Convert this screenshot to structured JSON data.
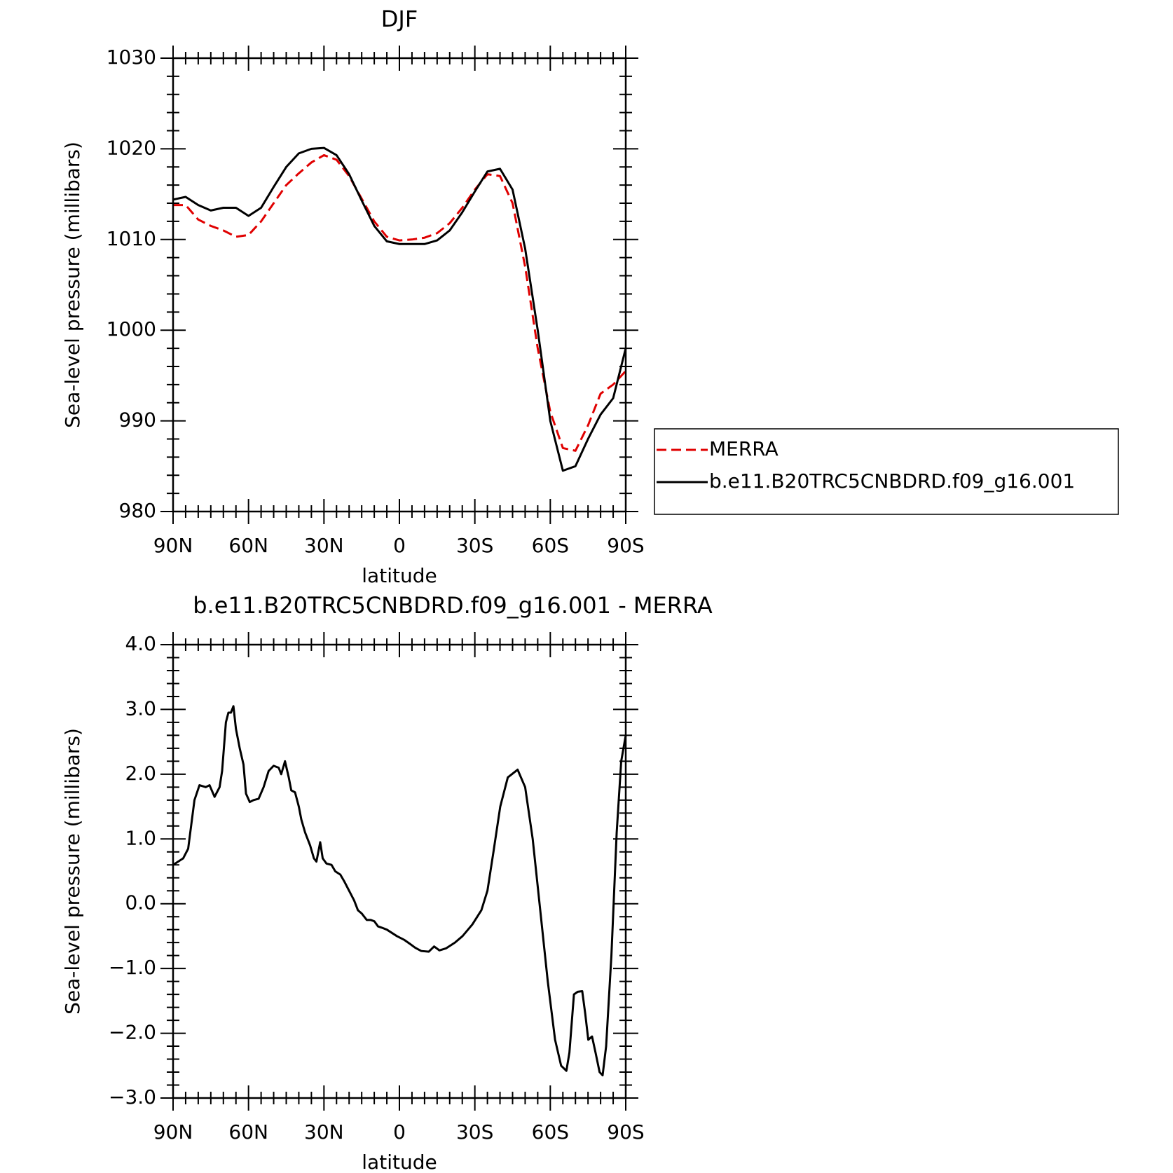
{
  "chart_data": [
    {
      "type": "line",
      "title": "DJF",
      "xlabel": "latitude",
      "ylabel": "Sea-level pressure (millibars)",
      "x": [
        90,
        85,
        80,
        75,
        70,
        65,
        60,
        55,
        50,
        45,
        40,
        35,
        30,
        25,
        20,
        15,
        10,
        5,
        0,
        -5,
        -10,
        -15,
        -20,
        -25,
        -30,
        -35,
        -40,
        -45,
        -50,
        -55,
        -60,
        -65,
        -70,
        -75,
        -80,
        -85,
        -90
      ],
      "series": [
        {
          "name": "MERRA",
          "color": "#e00000",
          "dash": true,
          "values": [
            1013.8,
            1013.8,
            1012.2,
            1011.5,
            1011,
            1010.3,
            1010.5,
            1012,
            1014,
            1016,
            1017.3,
            1018.5,
            1019.3,
            1018.8,
            1017,
            1014.5,
            1012,
            1010.3,
            1009.9,
            1010,
            1010.2,
            1010.7,
            1011.8,
            1013.5,
            1015.5,
            1017.2,
            1017,
            1014,
            1007,
            998,
            991,
            987,
            986.7,
            989.5,
            993,
            994,
            995.5
          ]
        },
        {
          "name": "b.e11.B20TRC5CNBDRD.f09_g16.001",
          "color": "#000000",
          "dash": false,
          "values": [
            1014.4,
            1014.7,
            1013.8,
            1013.2,
            1013.5,
            1013.5,
            1012.6,
            1013.5,
            1015.8,
            1018,
            1019.5,
            1020,
            1020.1,
            1019.3,
            1017.2,
            1014.3,
            1011.5,
            1009.8,
            1009.5,
            1009.5,
            1009.5,
            1009.9,
            1011,
            1013,
            1015.3,
            1017.5,
            1017.8,
            1015.5,
            1009,
            1000,
            990,
            984.5,
            985,
            988,
            990.7,
            992.5,
            998
          ]
        }
      ],
      "xlim": [
        90,
        -90
      ],
      "xticks": [
        {
          "value": 90,
          "label": "90N"
        },
        {
          "value": 60,
          "label": "60N"
        },
        {
          "value": 30,
          "label": "30N"
        },
        0,
        {
          "value": -30,
          "label": "30S"
        },
        {
          "value": -60,
          "label": "60S"
        },
        {
          "value": -90,
          "label": "90S"
        }
      ],
      "ylim": [
        980,
        1030
      ],
      "yticks": [
        980,
        990,
        1000,
        1010,
        1020,
        1030
      ],
      "legend": "right"
    },
    {
      "type": "line",
      "title": "b.e11.B20TRC5CNBDRD.f09_g16.001 - MERRA",
      "xlabel": "latitude",
      "ylabel": "Sea-level pressure (millibars)",
      "x": [
        90,
        86,
        84,
        81.5,
        79.5,
        77,
        75.5,
        73.5,
        71.5,
        70.5,
        69,
        68,
        67,
        66,
        65,
        63.5,
        62,
        61,
        59.5,
        58,
        56,
        54,
        52,
        50,
        48,
        47,
        45.5,
        44,
        43,
        41.5,
        40,
        39,
        37.5,
        35.5,
        34,
        33,
        31.5,
        30.5,
        29,
        27,
        25.5,
        23.5,
        22,
        20,
        18,
        16.5,
        15,
        13,
        11.5,
        10,
        8.5,
        7,
        5,
        3,
        1,
        -2,
        -4.2,
        -6.3,
        -8.7,
        -11.7,
        -13.8,
        -15.9,
        -18.5,
        -22.1,
        -25.1,
        -29,
        -32.6,
        -35,
        -37.4,
        -40.1,
        -43.1,
        -47,
        -50,
        -53,
        -56,
        -59,
        -61.9,
        -64.3,
        -66.4,
        -67.6,
        -69.4,
        -70.9,
        -72.7,
        -73.9,
        -75.1,
        -76.6,
        -78,
        -79.6,
        -80.8,
        -82.2,
        -84.3,
        -86.4,
        -88.2,
        -90
      ],
      "series": [
        {
          "name": "b.e11.B20TRC5CNBDRD.f09_g16.001 - MERRA",
          "color": "#000000",
          "dash": false,
          "values": [
            0.6,
            0.7,
            0.85,
            1.6,
            1.83,
            1.8,
            1.83,
            1.65,
            1.8,
            2.05,
            2.8,
            2.95,
            2.95,
            3.05,
            2.7,
            2.4,
            2.15,
            1.7,
            1.57,
            1.6,
            1.62,
            1.8,
            2.05,
            2.13,
            2.1,
            2.0,
            2.2,
            1.95,
            1.75,
            1.72,
            1.5,
            1.3,
            1.1,
            0.9,
            0.7,
            0.65,
            0.95,
            0.7,
            0.62,
            0.6,
            0.5,
            0.45,
            0.35,
            0.2,
            0.05,
            -0.1,
            -0.15,
            -0.25,
            -0.25,
            -0.27,
            -0.35,
            -0.37,
            -0.4,
            -0.45,
            -0.5,
            -0.56,
            -0.62,
            -0.68,
            -0.73,
            -0.74,
            -0.66,
            -0.72,
            -0.69,
            -0.6,
            -0.5,
            -0.32,
            -0.1,
            0.2,
            0.8,
            1.5,
            1.95,
            2.07,
            1.8,
            1.0,
            -0.1,
            -1.2,
            -2.1,
            -2.5,
            -2.58,
            -2.3,
            -1.4,
            -1.36,
            -1.35,
            -1.7,
            -2.1,
            -2.05,
            -2.3,
            -2.6,
            -2.65,
            -2.2,
            -0.8,
            1.1,
            2.2,
            2.6
          ]
        }
      ],
      "xlim": [
        90,
        -90
      ],
      "xticks": [
        {
          "value": 90,
          "label": "90N"
        },
        {
          "value": 60,
          "label": "60N"
        },
        {
          "value": 30,
          "label": "30N"
        },
        0,
        {
          "value": -30,
          "label": "30S"
        },
        {
          "value": -60,
          "label": "60S"
        },
        {
          "value": -90,
          "label": "90S"
        }
      ],
      "ylim": [
        -3,
        4
      ],
      "yticks": [
        {
          "value": -3,
          "label": "−3.0"
        },
        {
          "value": -2,
          "label": "−2.0"
        },
        {
          "value": -1,
          "label": "−1.0"
        },
        {
          "value": 0,
          "label": "0.0"
        },
        {
          "value": 1,
          "label": "1.0"
        },
        {
          "value": 2,
          "label": "2.0"
        },
        {
          "value": 3,
          "label": "3.0"
        },
        {
          "value": 4,
          "label": "4.0"
        }
      ]
    }
  ]
}
